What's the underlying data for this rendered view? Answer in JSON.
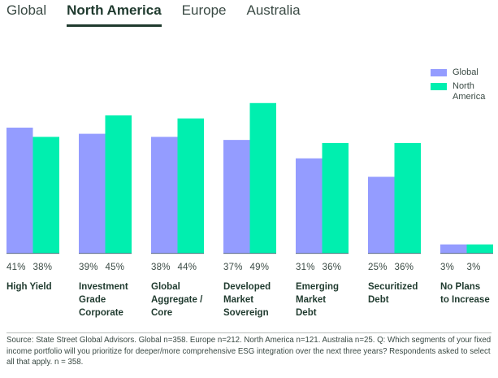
{
  "tabs": [
    {
      "label": "Global",
      "active": false
    },
    {
      "label": "North America",
      "active": true
    },
    {
      "label": "Europe",
      "active": false
    },
    {
      "label": "Australia",
      "active": false
    }
  ],
  "colors": {
    "global": "#949cff",
    "north_america": "#00efaf",
    "baseline": "#4a5a6e"
  },
  "chart_data": {
    "type": "bar",
    "title": "",
    "xlabel": "",
    "ylabel": "",
    "ylim": [
      0,
      52
    ],
    "grid": false,
    "legend_position": "top-right",
    "categories": [
      "High Yield",
      "Investment\nGrade\nCorporate",
      "Global\nAggregate /\nCore",
      "Developed\nMarket\nSovereign",
      "Emerging\nMarket\nDebt",
      "Securitized\nDebt",
      "No Plans\nto Increase"
    ],
    "series": [
      {
        "name": "Global",
        "values": [
          41,
          39,
          38,
          37,
          31,
          25,
          3
        ]
      },
      {
        "name": "North America",
        "values": [
          38,
          45,
          44,
          49,
          36,
          36,
          3
        ]
      }
    ],
    "value_labels": [
      [
        "41%",
        "38%"
      ],
      [
        "39%",
        "45%"
      ],
      [
        "38%",
        "44%"
      ],
      [
        "37%",
        "49%"
      ],
      [
        "31%",
        "36%"
      ],
      [
        "25%",
        "36%"
      ],
      [
        "3%",
        "3%"
      ]
    ]
  },
  "legend": [
    {
      "label": "Global"
    },
    {
      "label": "North\nAmerica"
    }
  ],
  "source": "Source: State Street Global Advisors. Global n=358. Europe n=212. North America n=121. Australia n=25. Q: Which segments of your fixed income portfolio will you prioritize for deeper/more comprehensive ESG integration over the next three years? Respondents asked to select all that apply. n = 358."
}
